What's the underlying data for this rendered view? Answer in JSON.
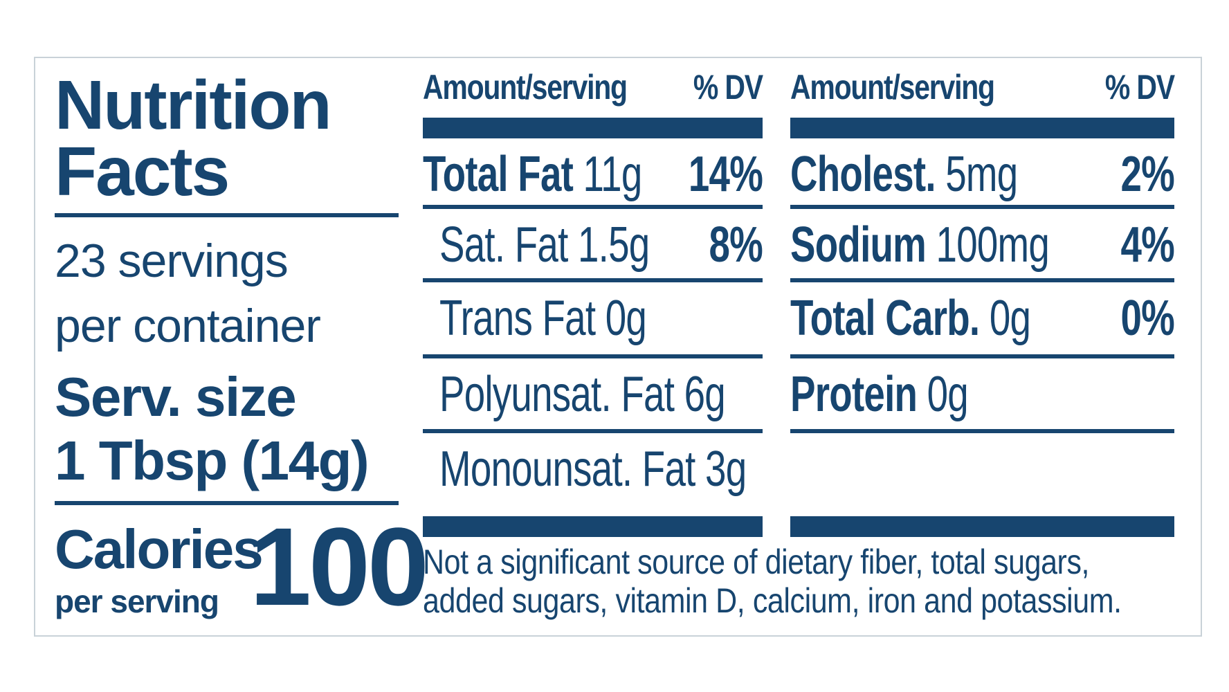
{
  "label": {
    "title_line1": "Nutrition",
    "title_line2": "Facts",
    "servings_line1": "23 servings",
    "servings_line2": "per container",
    "serving_size_line1": "Serv. size",
    "serving_size_line2": "1 Tbsp (14g)",
    "calories_label": "Calories",
    "calories_sub": "per serving",
    "calories_value": "100",
    "color": "#17456f"
  },
  "columns": [
    {
      "header_amount": "Amount/serving",
      "header_dv": "% DV",
      "rows": [
        {
          "name": "Total Fat",
          "amount": "11g",
          "dv": "14%",
          "bold": true
        },
        {
          "name": "Sat. Fat",
          "amount": "1.5g",
          "dv": "8%",
          "bold": false
        },
        {
          "name": "Trans Fat",
          "amount": "0g",
          "dv": "",
          "bold": false
        },
        {
          "name": "Polyunsat. Fat",
          "amount": "6g",
          "dv": "",
          "bold": false
        },
        {
          "name": "Monounsat. Fat",
          "amount": "3g",
          "dv": "",
          "bold": false
        }
      ]
    },
    {
      "header_amount": "Amount/serving",
      "header_dv": "% DV",
      "rows": [
        {
          "name": "Cholest.",
          "amount": "5mg",
          "dv": "2%",
          "bold": true
        },
        {
          "name": "Sodium",
          "amount": "100mg",
          "dv": "4%",
          "bold": true
        },
        {
          "name": "Total Carb.",
          "amount": "0g",
          "dv": "0%",
          "bold": true
        },
        {
          "name": "Protein",
          "amount": "0g",
          "dv": "",
          "bold": true
        }
      ]
    }
  ],
  "footnote": "Not a significant source of dietary fiber, total sugars, added sugars, vitamin D, calcium, iron and potassium."
}
